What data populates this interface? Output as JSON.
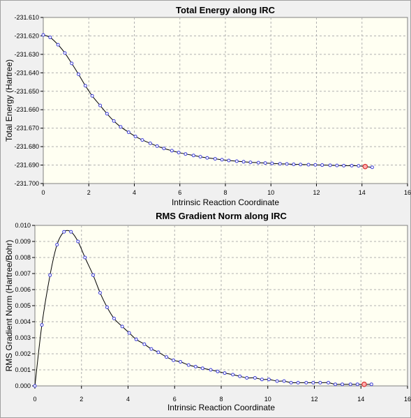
{
  "chart_data": [
    {
      "type": "line",
      "title": "Total Energy along IRC",
      "xlabel": "Intrinsic Reaction Coordinate",
      "ylabel": "Total Energy (Hartree)",
      "xlim": [
        0,
        16
      ],
      "ylim": [
        -231.7,
        -231.61
      ],
      "xticks": [
        0,
        2,
        4,
        6,
        8,
        10,
        12,
        14,
        16
      ],
      "yticks": [
        -231.61,
        -231.62,
        -231.63,
        -231.64,
        -231.65,
        -231.66,
        -231.67,
        -231.68,
        -231.69,
        -231.7
      ],
      "xtick_labels": [
        "0",
        "2",
        "4",
        "6",
        "8",
        "10",
        "12",
        "14",
        "16"
      ],
      "ytick_labels": [
        "-231.610",
        "-231.620",
        "-231.630",
        "-231.640",
        "-231.650",
        "-231.660",
        "-231.670",
        "-231.680",
        "-231.690",
        "-231.700"
      ],
      "grid": true,
      "highlight_x": 14.14,
      "x": [
        0,
        0.3,
        0.65,
        0.95,
        1.25,
        1.55,
        1.85,
        2.15,
        2.5,
        2.8,
        3.1,
        3.4,
        3.75,
        4.05,
        4.35,
        4.7,
        5.0,
        5.3,
        5.65,
        5.95,
        6.25,
        6.6,
        6.9,
        7.2,
        7.55,
        7.85,
        8.15,
        8.5,
        8.8,
        9.1,
        9.45,
        9.75,
        10.05,
        10.4,
        10.7,
        11.0,
        11.3,
        11.65,
        11.95,
        12.25,
        12.6,
        12.9,
        13.2,
        13.55,
        13.85,
        14.14,
        14.45
      ],
      "y": [
        -231.6195,
        -231.6208,
        -231.6248,
        -231.6293,
        -231.6349,
        -231.6408,
        -231.647,
        -231.6525,
        -231.6577,
        -231.6622,
        -231.6661,
        -231.6693,
        -231.6722,
        -231.6745,
        -231.6764,
        -231.6782,
        -231.6797,
        -231.681,
        -231.6822,
        -231.6832,
        -231.684,
        -231.6848,
        -231.6855,
        -231.6861,
        -231.6866,
        -231.6871,
        -231.6875,
        -231.6879,
        -231.6882,
        -231.6885,
        -231.6887,
        -231.6889,
        -231.6891,
        -231.6893,
        -231.6894,
        -231.6896,
        -231.6897,
        -231.6898,
        -231.6899,
        -231.69,
        -231.6901,
        -231.6902,
        -231.6903,
        -231.6903,
        -231.6904,
        -231.6908,
        -231.6912
      ]
    },
    {
      "type": "line",
      "title": "RMS Gradient Norm along IRC",
      "xlabel": "Intrinsic Reaction Coordinate",
      "ylabel": "RMS Gradient Norm (Hartree/Bohr)",
      "xlim": [
        0,
        16
      ],
      "ylim": [
        0,
        0.01
      ],
      "xticks": [
        0,
        2,
        4,
        6,
        8,
        10,
        12,
        14,
        16
      ],
      "yticks": [
        0,
        0.001,
        0.002,
        0.003,
        0.004,
        0.005,
        0.006,
        0.007,
        0.008,
        0.009,
        0.01
      ],
      "xtick_labels": [
        "0",
        "2",
        "4",
        "6",
        "8",
        "10",
        "12",
        "14",
        "16"
      ],
      "ytick_labels": [
        "0.000",
        "0.001",
        "0.002",
        "0.003",
        "0.004",
        "0.005",
        "0.006",
        "0.007",
        "0.008",
        "0.009",
        "0.010"
      ],
      "grid": true,
      "highlight_x": 14.14,
      "x": [
        0,
        0.3,
        0.65,
        0.95,
        1.25,
        1.55,
        1.85,
        2.15,
        2.5,
        2.8,
        3.1,
        3.4,
        3.75,
        4.05,
        4.35,
        4.7,
        5.0,
        5.3,
        5.65,
        5.95,
        6.25,
        6.6,
        6.9,
        7.2,
        7.55,
        7.85,
        8.15,
        8.5,
        8.8,
        9.1,
        9.45,
        9.75,
        10.05,
        10.4,
        10.7,
        11.0,
        11.3,
        11.65,
        11.95,
        12.25,
        12.6,
        12.9,
        13.2,
        13.55,
        13.85,
        14.14,
        14.45
      ],
      "y": [
        0,
        0.0038,
        0.0069,
        0.0088,
        0.0096,
        0.0096,
        0.009,
        0.008,
        0.0069,
        0.0058,
        0.0049,
        0.0042,
        0.0037,
        0.0033,
        0.0029,
        0.0026,
        0.0023,
        0.0021,
        0.0018,
        0.0016,
        0.0015,
        0.0013,
        0.0012,
        0.0011,
        0.001,
        0.0009,
        0.0008,
        0.0007,
        0.0006,
        0.0005,
        0.0005,
        0.0004,
        0.0004,
        0.0003,
        0.0003,
        0.0002,
        0.0002,
        0.0002,
        0.0002,
        0.0002,
        0.0002,
        0.0001,
        0.0001,
        0.0001,
        0.0001,
        0.0001,
        0.0001
      ]
    }
  ]
}
